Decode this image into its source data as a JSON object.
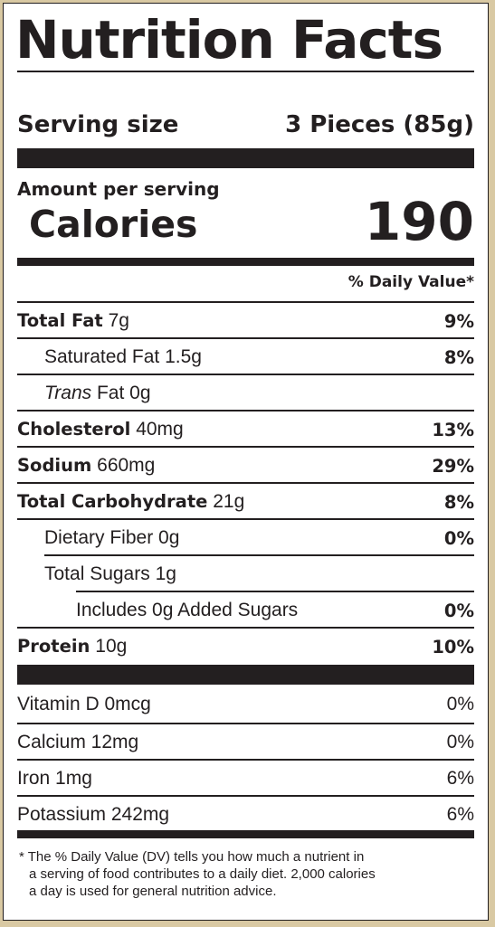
{
  "title": "Nutrition Facts",
  "serving": {
    "label": "Serving size",
    "value": "3 Pieces (85g)"
  },
  "amount_per_serving": "Amount per serving",
  "calories": {
    "label": "Calories",
    "value": "190"
  },
  "daily_value_header": "% Daily Value*",
  "nutrients": [
    {
      "name": "Total Fat",
      "amount": "7g",
      "dv": "9%"
    },
    {
      "name": "Saturated Fat",
      "amount": "1.5g",
      "dv": "8%"
    },
    {
      "name_italic": "Trans",
      "name": "Fat",
      "amount": "0g",
      "dv": ""
    },
    {
      "name": "Cholesterol",
      "amount": "40mg",
      "dv": "13%"
    },
    {
      "name": "Sodium",
      "amount": "660mg",
      "dv": "29%"
    },
    {
      "name": "Total Carbohydrate",
      "amount": "21g",
      "dv": "8%"
    },
    {
      "name": "Dietary Fiber",
      "amount": "0g",
      "dv": "0%"
    },
    {
      "name": "Total Sugars",
      "amount": "1g",
      "dv": ""
    },
    {
      "text": "Includes 0g Added Sugars",
      "dv": "0%"
    },
    {
      "name": "Protein",
      "amount": "10g",
      "dv": "10%"
    }
  ],
  "vitamins": [
    {
      "text": "Vitamin D 0mcg",
      "dv": "0%"
    },
    {
      "text": "Calcium 12mg",
      "dv": "0%"
    },
    {
      "text": "Iron 1mg",
      "dv": "6%"
    },
    {
      "text": "Potassium 242mg",
      "dv": "6%"
    }
  ],
  "footnote": [
    "* The % Daily Value (DV) tells you how much a nutrient in",
    "a serving of food contributes to a daily diet. 2,000 calories",
    "a day is used for general nutrition advice."
  ],
  "colors": {
    "ink": "#231f20",
    "background": "#d9c9a3",
    "panel": "#ffffff"
  }
}
